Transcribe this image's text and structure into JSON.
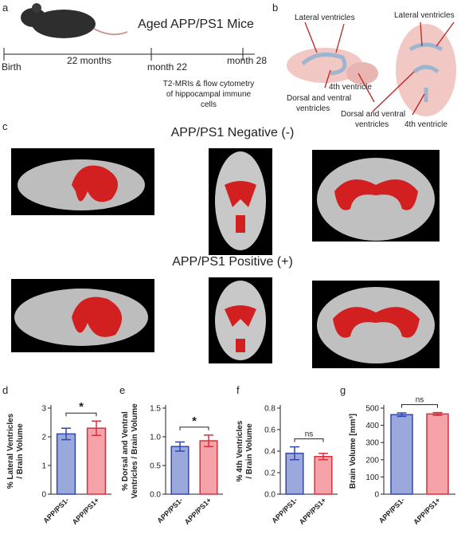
{
  "panels": {
    "a": {
      "letter": "a",
      "title": "Aged APP/PS1 Mice",
      "birth": "Birth",
      "span": "22 months",
      "start": "month 22",
      "end": "month 28",
      "method": [
        "T2-MRIs & flow cytometry",
        "of hippocampal immune",
        "cells"
      ]
    },
    "b": {
      "letter": "b",
      "labels": [
        "Lateral ventricles",
        "Lateral ventricles",
        "4th ventricle",
        [
          "Dorsal and ventral",
          "ventricles"
        ],
        [
          "Dorsal and ventral",
          "ventricles"
        ],
        "4th ventricle"
      ]
    },
    "c": {
      "letter": "c",
      "rows": [
        "APP/PS1 Negative (-)",
        "APP/PS1 Positive (+)"
      ]
    }
  },
  "chart_data": [
    {
      "type": "bar",
      "letter": "d",
      "ylabel": [
        "% Lateral Ventricles",
        "/ Brain Volume"
      ],
      "categories": [
        "APP/PS1-",
        "APP/PS1+"
      ],
      "values": [
        2.1,
        2.3
      ],
      "errors": [
        0.2,
        0.25
      ],
      "colors": [
        "#9aa8dc",
        "#f5a3a8"
      ],
      "edge_colors": [
        "#3247a8",
        "#d8303c"
      ],
      "ylim": [
        0,
        3
      ],
      "yticks": [
        0,
        1,
        2,
        3
      ],
      "significance": "*"
    },
    {
      "type": "bar",
      "letter": "e",
      "ylabel": [
        "% Dorsal and Ventral",
        "Ventricles / Brain Volume"
      ],
      "categories": [
        "APP/PS1-",
        "APP/PS1+"
      ],
      "values": [
        0.83,
        0.93
      ],
      "errors": [
        0.08,
        0.1
      ],
      "colors": [
        "#9aa8dc",
        "#f5a3a8"
      ],
      "edge_colors": [
        "#3247a8",
        "#d8303c"
      ],
      "ylim": [
        0,
        1.5
      ],
      "yticks": [
        {
          "value": 0,
          "label": "0.0"
        },
        0.5,
        {
          "value": 1,
          "label": "1.0"
        },
        1.5
      ],
      "significance": "*"
    },
    {
      "type": "bar",
      "letter": "f",
      "ylabel": [
        "% 4th Ventricles",
        "/ Brain Volume"
      ],
      "categories": [
        "APP/PS1-",
        "APP/PS1+"
      ],
      "values": [
        0.38,
        0.35
      ],
      "errors": [
        0.06,
        0.03
      ],
      "colors": [
        "#9aa8dc",
        "#f5a3a8"
      ],
      "edge_colors": [
        "#3247a8",
        "#d8303c"
      ],
      "ylim": [
        0,
        0.8
      ],
      "yticks": [
        {
          "value": 0,
          "label": "0.0"
        },
        0.2,
        0.4,
        0.6,
        0.8
      ],
      "significance": "ns"
    },
    {
      "type": "bar",
      "letter": "g",
      "ylabel": [
        "Brain Volume [mm³]"
      ],
      "categories": [
        "APP/PS1-",
        "APP/PS1+"
      ],
      "values": [
        462,
        466
      ],
      "errors": [
        10,
        8
      ],
      "colors": [
        "#9aa8dc",
        "#f5a3a8"
      ],
      "edge_colors": [
        "#3247a8",
        "#d8303c"
      ],
      "ylim": [
        0,
        500
      ],
      "yticks": [
        0,
        100,
        200,
        300,
        400,
        500
      ],
      "significance": "ns"
    }
  ]
}
